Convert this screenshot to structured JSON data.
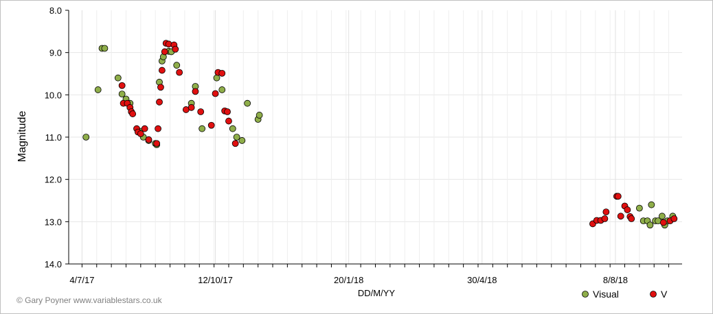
{
  "chart_data": {
    "type": "scatter",
    "title": "",
    "xlabel": "DD/M/YY",
    "ylabel": "Magnitude",
    "ylim": [
      14.0,
      8.0
    ],
    "y_inverted": true,
    "xlim": [
      "2017-06-24",
      "2018-09-16"
    ],
    "x_tick_labels": [
      "4/7/17",
      "12/10/17",
      "20/1/18",
      "30/4/18",
      "8/8/18"
    ],
    "x_ticks": [
      "2017-07-04",
      "2017-10-12",
      "2018-01-20",
      "2018-04-30",
      "2018-08-08"
    ],
    "y_ticks": [
      8.0,
      9.0,
      10.0,
      11.0,
      12.0,
      13.0,
      14.0
    ],
    "y_tick_labels": [
      "8.0",
      "9.0",
      "10.0",
      "11.0",
      "12.0",
      "13.0",
      "14.0"
    ],
    "grid": true,
    "legend": "bottom-right",
    "credit": "© Gary Poyner www.variablestars.co.uk",
    "series": [
      {
        "name": "Visual",
        "color": "#8fae4a",
        "points": [
          [
            "2017-07-07",
            11.0
          ],
          [
            "2017-07-16",
            9.88
          ],
          [
            "2017-07-19",
            8.9
          ],
          [
            "2017-07-21",
            8.9
          ],
          [
            "2017-07-31",
            9.6
          ],
          [
            "2017-08-03",
            9.98
          ],
          [
            "2017-08-06",
            10.1
          ],
          [
            "2017-08-09",
            10.2
          ],
          [
            "2017-08-16",
            10.86
          ],
          [
            "2017-08-19",
            11.0
          ],
          [
            "2017-08-23",
            11.08
          ],
          [
            "2017-08-28",
            11.15
          ],
          [
            "2017-08-29",
            11.18
          ],
          [
            "2017-08-31",
            9.7
          ],
          [
            "2017-09-02",
            9.2
          ],
          [
            "2017-09-03",
            9.1
          ],
          [
            "2017-09-07",
            8.97
          ],
          [
            "2017-09-09",
            8.98
          ],
          [
            "2017-09-13",
            9.3
          ],
          [
            "2017-09-24",
            10.2
          ],
          [
            "2017-09-27",
            9.8
          ],
          [
            "2017-10-02",
            10.8
          ],
          [
            "2017-10-13",
            9.6
          ],
          [
            "2017-10-17",
            9.88
          ],
          [
            "2017-10-25",
            10.8
          ],
          [
            "2017-10-28",
            11.0
          ],
          [
            "2017-11-01",
            11.08
          ],
          [
            "2017-11-05",
            10.2
          ],
          [
            "2017-11-13",
            10.58
          ],
          [
            "2017-11-14",
            10.48
          ],
          [
            "2018-08-26",
            12.68
          ],
          [
            "2018-08-29",
            12.98
          ],
          [
            "2018-09-01",
            12.98
          ],
          [
            "2018-09-03",
            13.08
          ],
          [
            "2018-09-04",
            12.6
          ],
          [
            "2018-09-07",
            12.98
          ],
          [
            "2018-09-09",
            12.98
          ],
          [
            "2018-09-12",
            12.87
          ],
          [
            "2018-09-14",
            13.08
          ],
          [
            "2018-09-16",
            12.98
          ],
          [
            "2018-09-20",
            12.87
          ]
        ]
      },
      {
        "name": "V",
        "color": "#e01010",
        "points": [
          [
            "2017-08-03",
            9.78
          ],
          [
            "2017-08-04",
            10.2
          ],
          [
            "2017-08-07",
            10.2
          ],
          [
            "2017-08-09",
            10.3
          ],
          [
            "2017-08-10",
            10.4
          ],
          [
            "2017-08-11",
            10.45
          ],
          [
            "2017-08-14",
            10.8
          ],
          [
            "2017-08-15",
            10.88
          ],
          [
            "2017-08-17",
            10.92
          ],
          [
            "2017-08-20",
            10.8
          ],
          [
            "2017-08-23",
            11.06
          ],
          [
            "2017-08-29",
            11.15
          ],
          [
            "2017-08-30",
            10.8
          ],
          [
            "2017-08-31",
            10.17
          ],
          [
            "2017-09-01",
            9.82
          ],
          [
            "2017-09-02",
            9.42
          ],
          [
            "2017-09-04",
            8.98
          ],
          [
            "2017-09-05",
            8.78
          ],
          [
            "2017-09-07",
            8.8
          ],
          [
            "2017-09-11",
            8.82
          ],
          [
            "2017-09-12",
            8.92
          ],
          [
            "2017-09-15",
            9.47
          ],
          [
            "2017-09-20",
            10.35
          ],
          [
            "2017-09-24",
            10.3
          ],
          [
            "2017-09-27",
            9.92
          ],
          [
            "2017-10-01",
            10.4
          ],
          [
            "2017-10-09",
            10.72
          ],
          [
            "2017-10-12",
            9.97
          ],
          [
            "2017-10-14",
            9.47
          ],
          [
            "2017-10-17",
            9.49
          ],
          [
            "2017-10-19",
            10.38
          ],
          [
            "2017-10-21",
            10.4
          ],
          [
            "2017-10-22",
            10.62
          ],
          [
            "2017-10-27",
            11.15
          ],
          [
            "2018-07-22",
            13.05
          ],
          [
            "2018-07-25",
            12.97
          ],
          [
            "2018-07-28",
            12.97
          ],
          [
            "2018-07-31",
            12.93
          ],
          [
            "2018-08-01",
            12.77
          ],
          [
            "2018-08-09",
            12.4
          ],
          [
            "2018-08-10",
            12.4
          ],
          [
            "2018-08-12",
            12.87
          ],
          [
            "2018-08-15",
            12.63
          ],
          [
            "2018-08-17",
            12.72
          ],
          [
            "2018-08-19",
            12.88
          ],
          [
            "2018-08-20",
            12.93
          ],
          [
            "2018-09-13",
            13.02
          ],
          [
            "2018-09-18",
            12.98
          ],
          [
            "2018-09-21",
            12.93
          ]
        ]
      }
    ]
  }
}
